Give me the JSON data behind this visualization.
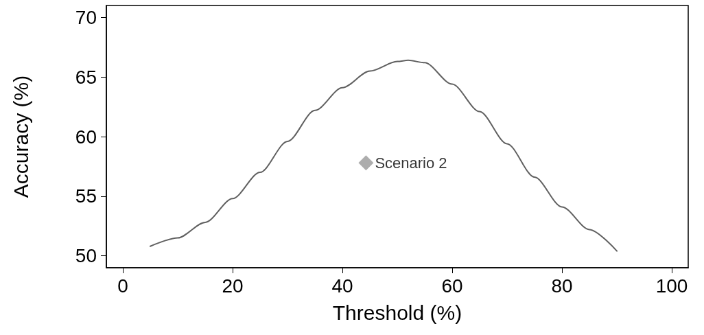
{
  "chart_data": {
    "type": "line",
    "xlabel": "Threshold (%)",
    "ylabel": "Accuracy (%)",
    "xlim": [
      -3,
      103
    ],
    "xticks": [
      0,
      20,
      40,
      60,
      80,
      100
    ],
    "ylim": [
      49,
      71
    ],
    "yticks": [
      50,
      55,
      60,
      65,
      70
    ],
    "grid": false,
    "legend": false,
    "series": [
      {
        "type": "line",
        "marker": "none",
        "color": "#606060",
        "x": [
          5,
          10,
          15,
          20,
          25,
          30,
          35,
          40,
          45,
          50,
          52,
          55,
          60,
          65,
          70,
          75,
          80,
          85,
          90
        ],
        "values": [
          50.8,
          51.5,
          52.8,
          54.8,
          57.0,
          59.6,
          62.2,
          64.1,
          65.5,
          66.3,
          66.4,
          66.2,
          64.4,
          62.1,
          59.4,
          56.6,
          54.1,
          52.2,
          50.4
        ]
      },
      {
        "type": "scatter",
        "name": "Scenario 2",
        "marker": "diamond",
        "color": "#999999",
        "x": [
          44.3
        ],
        "values": [
          57.8
        ]
      }
    ]
  }
}
